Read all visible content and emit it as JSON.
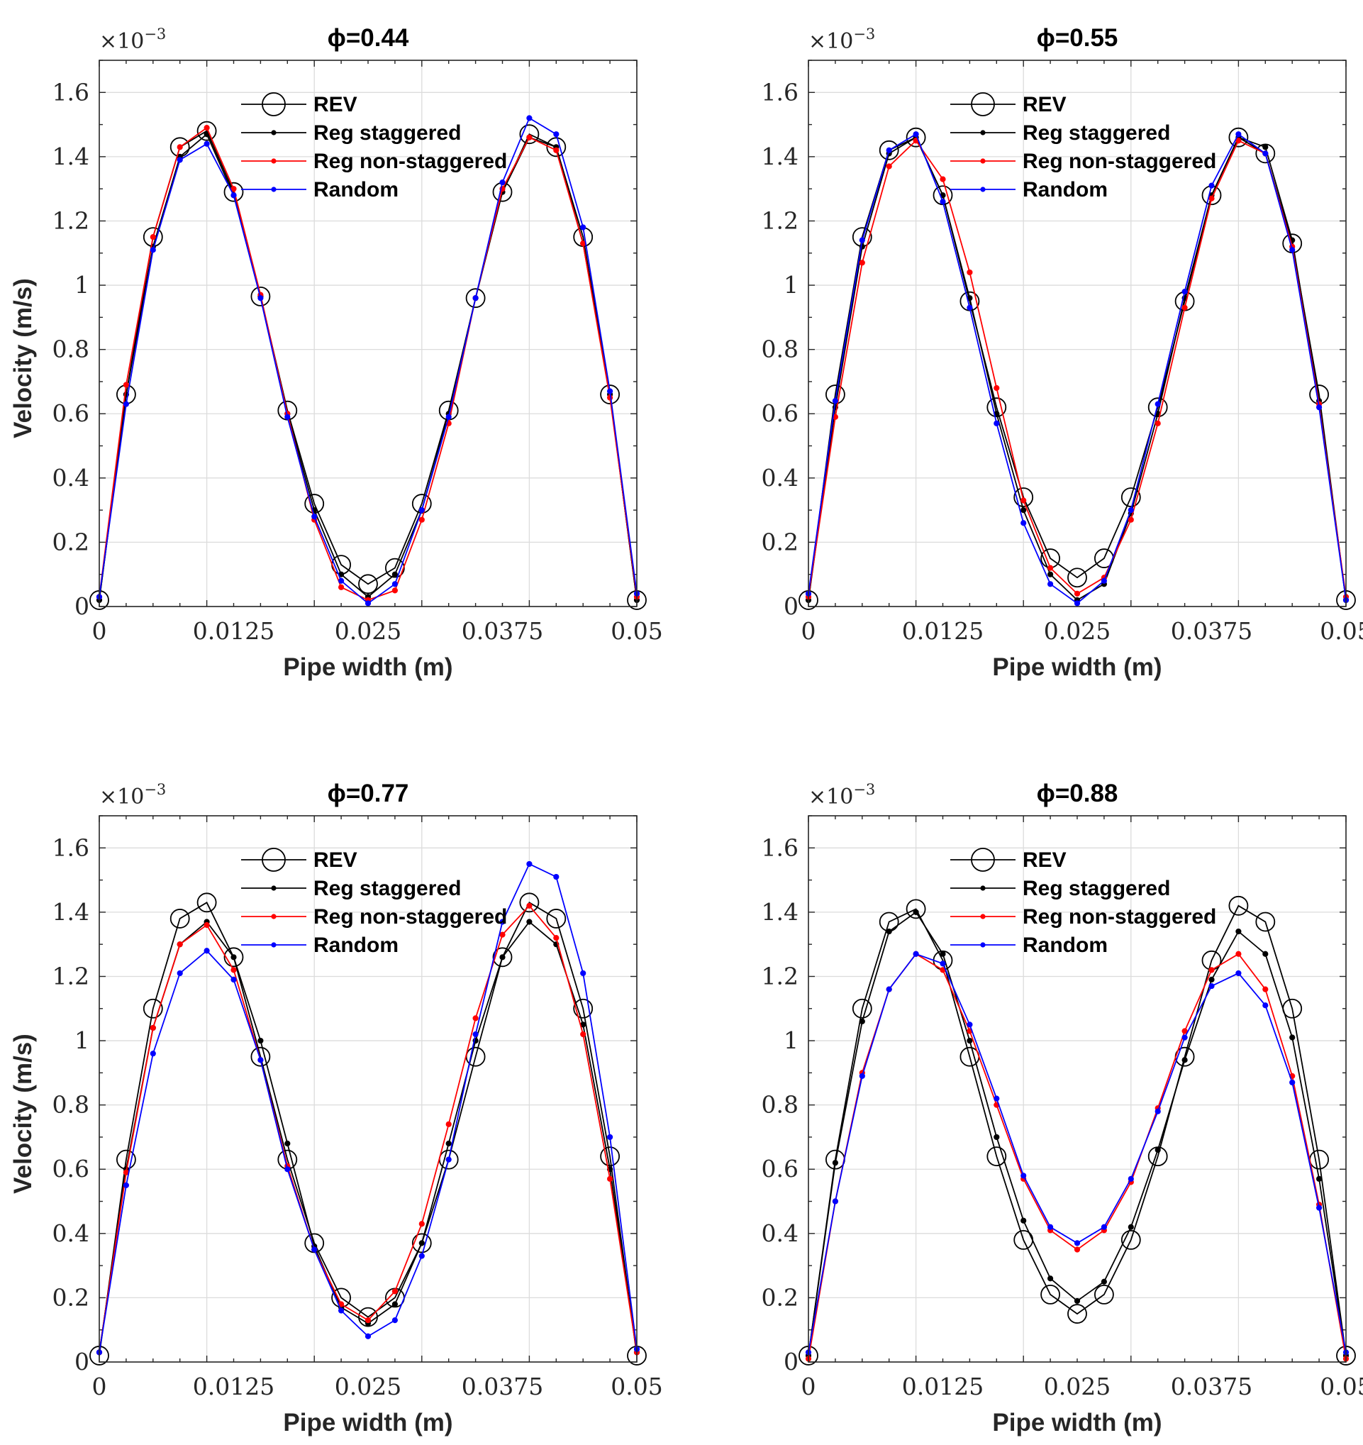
{
  "figure": {
    "colors": {
      "rev": "#000000",
      "staggered": "#000000",
      "nonstaggered": "#ff0000",
      "random": "#0000ff"
    }
  },
  "chart_data": [
    {
      "type": "line",
      "title": "ϕ=0.44",
      "xlabel": "Pipe width (m)",
      "ylabel": "Velocity (m/s)",
      "y_exponent": "×10⁻³",
      "xlim": [
        0,
        0.05
      ],
      "ylim": [
        0,
        1.7
      ],
      "xticks": [
        "0",
        "0.0125",
        "0.025",
        "0.0375",
        "0.05"
      ],
      "yticks": [
        "0",
        "0.2",
        "0.4",
        "0.6",
        "0.8",
        "1",
        "1.2",
        "1.4",
        "1.6"
      ],
      "legend": [
        "REV",
        "Reg staggered",
        "Reg non-staggered",
        "Random"
      ],
      "series": [
        {
          "name": "REV",
          "x": [
            0,
            0.0025,
            0.005,
            0.0075,
            0.01,
            0.0125,
            0.015,
            0.0175,
            0.02,
            0.0225,
            0.025,
            0.0275,
            0.03,
            0.0325,
            0.035,
            0.0375,
            0.04,
            0.0425,
            0.045,
            0.0475,
            0.05
          ],
          "values": [
            0.02,
            0.66,
            1.15,
            1.43,
            1.48,
            1.29,
            0.965,
            0.61,
            0.32,
            0.13,
            0.07,
            0.12,
            0.32,
            0.61,
            0.96,
            1.29,
            1.47,
            1.43,
            1.15,
            0.66,
            0.02
          ]
        },
        {
          "name": "Reg staggered",
          "x": [
            0,
            0.0025,
            0.005,
            0.0075,
            0.01,
            0.0125,
            0.015,
            0.0175,
            0.02,
            0.0225,
            0.025,
            0.0275,
            0.03,
            0.0325,
            0.035,
            0.0375,
            0.04,
            0.0425,
            0.045,
            0.0475,
            0.05
          ],
          "values": [
            0.02,
            0.66,
            1.12,
            1.4,
            1.47,
            1.28,
            0.965,
            0.6,
            0.3,
            0.1,
            0.03,
            0.1,
            0.3,
            0.6,
            0.96,
            1.29,
            1.46,
            1.43,
            1.13,
            0.66,
            0.02
          ]
        },
        {
          "name": "Reg non-staggered",
          "x": [
            0,
            0.0025,
            0.005,
            0.0075,
            0.01,
            0.0125,
            0.015,
            0.0175,
            0.02,
            0.0225,
            0.025,
            0.0275,
            0.03,
            0.0325,
            0.035,
            0.0375,
            0.04,
            0.0425,
            0.045,
            0.0475,
            0.05
          ],
          "values": [
            0.03,
            0.69,
            1.15,
            1.43,
            1.49,
            1.3,
            0.97,
            0.6,
            0.27,
            0.06,
            0.02,
            0.05,
            0.27,
            0.57,
            0.96,
            1.3,
            1.46,
            1.42,
            1.13,
            0.65,
            0.03
          ]
        },
        {
          "name": "Random",
          "x": [
            0,
            0.0025,
            0.005,
            0.0075,
            0.01,
            0.0125,
            0.015,
            0.0175,
            0.02,
            0.0225,
            0.025,
            0.0275,
            0.03,
            0.0325,
            0.035,
            0.0375,
            0.04,
            0.0425,
            0.045,
            0.0475,
            0.05
          ],
          "values": [
            0.03,
            0.63,
            1.11,
            1.39,
            1.44,
            1.28,
            0.96,
            0.59,
            0.28,
            0.08,
            0.01,
            0.07,
            0.3,
            0.59,
            0.96,
            1.32,
            1.52,
            1.47,
            1.18,
            0.67,
            0.04
          ]
        }
      ]
    },
    {
      "type": "line",
      "title": "ϕ=0.55",
      "xlabel": "Pipe width (m)",
      "ylabel": "",
      "y_exponent": "×10⁻³",
      "xlim": [
        0,
        0.05
      ],
      "ylim": [
        0,
        1.7
      ],
      "xticks": [
        "0",
        "0.0125",
        "0.025",
        "0.0375",
        "0.05"
      ],
      "yticks": [
        "0",
        "0.2",
        "0.4",
        "0.6",
        "0.8",
        "1",
        "1.2",
        "1.4",
        "1.6"
      ],
      "legend": [
        "REV",
        "Reg staggered",
        "Reg non-staggered",
        "Random"
      ],
      "series": [
        {
          "name": "REV",
          "x": [
            0,
            0.0025,
            0.005,
            0.0075,
            0.01,
            0.0125,
            0.015,
            0.0175,
            0.02,
            0.0225,
            0.025,
            0.0275,
            0.03,
            0.0325,
            0.035,
            0.0375,
            0.04,
            0.0425,
            0.045,
            0.0475,
            0.05
          ],
          "values": [
            0.02,
            0.66,
            1.15,
            1.42,
            1.46,
            1.28,
            0.95,
            0.62,
            0.34,
            0.15,
            0.09,
            0.15,
            0.34,
            0.62,
            0.95,
            1.28,
            1.46,
            1.41,
            1.13,
            0.66,
            0.02
          ]
        },
        {
          "name": "Reg staggered",
          "x": [
            0,
            0.0025,
            0.005,
            0.0075,
            0.01,
            0.0125,
            0.015,
            0.0175,
            0.02,
            0.0225,
            0.025,
            0.0275,
            0.03,
            0.0325,
            0.035,
            0.0375,
            0.04,
            0.0425,
            0.045,
            0.0475,
            0.05
          ],
          "values": [
            0.02,
            0.62,
            1.12,
            1.41,
            1.46,
            1.28,
            0.96,
            0.6,
            0.3,
            0.1,
            0.02,
            0.07,
            0.29,
            0.6,
            0.96,
            1.28,
            1.46,
            1.43,
            1.14,
            0.64,
            0.02
          ]
        },
        {
          "name": "Reg non-staggered",
          "x": [
            0,
            0.0025,
            0.005,
            0.0075,
            0.01,
            0.0125,
            0.015,
            0.0175,
            0.02,
            0.0225,
            0.025,
            0.0275,
            0.03,
            0.0325,
            0.035,
            0.0375,
            0.04,
            0.0425,
            0.045,
            0.0475,
            0.05
          ],
          "values": [
            0.03,
            0.59,
            1.07,
            1.37,
            1.45,
            1.33,
            1.04,
            0.68,
            0.33,
            0.12,
            0.04,
            0.09,
            0.27,
            0.57,
            0.93,
            1.27,
            1.45,
            1.41,
            1.12,
            0.63,
            0.03
          ]
        },
        {
          "name": "Random",
          "x": [
            0,
            0.0025,
            0.005,
            0.0075,
            0.01,
            0.0125,
            0.015,
            0.0175,
            0.02,
            0.0225,
            0.025,
            0.0275,
            0.03,
            0.0325,
            0.035,
            0.0375,
            0.04,
            0.0425,
            0.045,
            0.0475,
            0.05
          ],
          "values": [
            0.04,
            0.64,
            1.14,
            1.42,
            1.47,
            1.26,
            0.93,
            0.57,
            0.26,
            0.07,
            0.01,
            0.08,
            0.3,
            0.63,
            0.98,
            1.31,
            1.47,
            1.41,
            1.11,
            0.62,
            0.02
          ]
        }
      ]
    },
    {
      "type": "line",
      "title": "ϕ=0.77",
      "xlabel": "Pipe width (m)",
      "ylabel": "Velocity (m/s)",
      "y_exponent": "×10⁻³",
      "xlim": [
        0,
        0.05
      ],
      "ylim": [
        0,
        1.7
      ],
      "xticks": [
        "0",
        "0.0125",
        "0.025",
        "0.0375",
        "0.05"
      ],
      "yticks": [
        "0",
        "0.2",
        "0.4",
        "0.6",
        "0.8",
        "1",
        "1.2",
        "1.4",
        "1.6"
      ],
      "legend": [
        "REV",
        "Reg staggered",
        "Reg non-staggered",
        "Random"
      ],
      "series": [
        {
          "name": "REV",
          "x": [
            0,
            0.0025,
            0.005,
            0.0075,
            0.01,
            0.0125,
            0.015,
            0.0175,
            0.02,
            0.0225,
            0.025,
            0.0275,
            0.03,
            0.0325,
            0.035,
            0.0375,
            0.04,
            0.0425,
            0.045,
            0.0475,
            0.05
          ],
          "values": [
            0.02,
            0.63,
            1.1,
            1.38,
            1.43,
            1.26,
            0.95,
            0.63,
            0.37,
            0.2,
            0.14,
            0.2,
            0.37,
            0.63,
            0.95,
            1.26,
            1.43,
            1.38,
            1.1,
            0.64,
            0.02
          ]
        },
        {
          "name": "Reg staggered",
          "x": [
            0,
            0.0025,
            0.005,
            0.0075,
            0.01,
            0.0125,
            0.015,
            0.0175,
            0.02,
            0.0225,
            0.025,
            0.0275,
            0.03,
            0.0325,
            0.035,
            0.0375,
            0.04,
            0.0425,
            0.045,
            0.0475,
            0.05
          ],
          "values": [
            0.03,
            0.6,
            1.04,
            1.3,
            1.37,
            1.26,
            1.0,
            0.68,
            0.36,
            0.17,
            0.12,
            0.18,
            0.37,
            0.68,
            1.0,
            1.26,
            1.37,
            1.3,
            1.05,
            0.6,
            0.03
          ]
        },
        {
          "name": "Reg non-staggered",
          "x": [
            0,
            0.0025,
            0.005,
            0.0075,
            0.01,
            0.0125,
            0.015,
            0.0175,
            0.02,
            0.0225,
            0.025,
            0.0275,
            0.03,
            0.0325,
            0.035,
            0.0375,
            0.04,
            0.0425,
            0.045,
            0.0475,
            0.05
          ],
          "values": [
            0.03,
            0.59,
            1.04,
            1.3,
            1.36,
            1.22,
            0.94,
            0.61,
            0.35,
            0.18,
            0.13,
            0.22,
            0.43,
            0.74,
            1.07,
            1.33,
            1.42,
            1.32,
            1.02,
            0.57,
            0.03
          ]
        },
        {
          "name": "Random",
          "x": [
            0,
            0.0025,
            0.005,
            0.0075,
            0.01,
            0.0125,
            0.015,
            0.0175,
            0.02,
            0.0225,
            0.025,
            0.0275,
            0.03,
            0.0325,
            0.035,
            0.0375,
            0.04,
            0.0425,
            0.045,
            0.0475,
            0.05
          ],
          "values": [
            0.03,
            0.55,
            0.96,
            1.21,
            1.28,
            1.19,
            0.94,
            0.6,
            0.35,
            0.16,
            0.08,
            0.13,
            0.33,
            0.63,
            1.02,
            1.37,
            1.55,
            1.51,
            1.21,
            0.7,
            0.04
          ]
        }
      ]
    },
    {
      "type": "line",
      "title": "ϕ=0.88",
      "xlabel": "Pipe width (m)",
      "ylabel": "",
      "y_exponent": "×10⁻³",
      "xlim": [
        0,
        0.05
      ],
      "ylim": [
        0,
        1.7
      ],
      "xticks": [
        "0",
        "0.0125",
        "0.025",
        "0.0375",
        "0.05"
      ],
      "yticks": [
        "0",
        "0.2",
        "0.4",
        "0.6",
        "0.8",
        "1",
        "1.2",
        "1.4",
        "1.6"
      ],
      "legend": [
        "REV",
        "Reg staggered",
        "Reg non-staggered",
        "Random"
      ],
      "series": [
        {
          "name": "REV",
          "x": [
            0,
            0.0025,
            0.005,
            0.0075,
            0.01,
            0.0125,
            0.015,
            0.0175,
            0.02,
            0.0225,
            0.025,
            0.0275,
            0.03,
            0.0325,
            0.035,
            0.0375,
            0.04,
            0.0425,
            0.045,
            0.0475,
            0.05
          ],
          "values": [
            0.02,
            0.63,
            1.1,
            1.37,
            1.41,
            1.25,
            0.95,
            0.64,
            0.38,
            0.21,
            0.15,
            0.21,
            0.38,
            0.64,
            0.95,
            1.25,
            1.42,
            1.37,
            1.1,
            0.63,
            0.02
          ]
        },
        {
          "name": "Reg staggered",
          "x": [
            0,
            0.0025,
            0.005,
            0.0075,
            0.01,
            0.0125,
            0.015,
            0.0175,
            0.02,
            0.0225,
            0.025,
            0.0275,
            0.03,
            0.0325,
            0.035,
            0.0375,
            0.04,
            0.0425,
            0.045,
            0.0475,
            0.05
          ],
          "values": [
            0.02,
            0.62,
            1.06,
            1.34,
            1.4,
            1.27,
            1.0,
            0.7,
            0.44,
            0.26,
            0.19,
            0.25,
            0.42,
            0.66,
            0.94,
            1.19,
            1.34,
            1.27,
            1.01,
            0.57,
            0.02
          ]
        },
        {
          "name": "Reg non-staggered",
          "x": [
            0,
            0.0025,
            0.005,
            0.0075,
            0.01,
            0.0125,
            0.015,
            0.0175,
            0.02,
            0.0225,
            0.025,
            0.0275,
            0.03,
            0.0325,
            0.035,
            0.0375,
            0.04,
            0.0425,
            0.045,
            0.0475,
            0.05
          ],
          "values": [
            0.01,
            0.5,
            0.9,
            1.16,
            1.27,
            1.22,
            1.03,
            0.8,
            0.57,
            0.41,
            0.35,
            0.41,
            0.56,
            0.79,
            1.03,
            1.22,
            1.27,
            1.16,
            0.89,
            0.49,
            0.01
          ]
        },
        {
          "name": "Random",
          "x": [
            0,
            0.0025,
            0.005,
            0.0075,
            0.01,
            0.0125,
            0.015,
            0.0175,
            0.02,
            0.0225,
            0.025,
            0.0275,
            0.03,
            0.0325,
            0.035,
            0.0375,
            0.04,
            0.0425,
            0.045,
            0.0475,
            0.05
          ],
          "values": [
            0.03,
            0.5,
            0.89,
            1.16,
            1.27,
            1.24,
            1.05,
            0.82,
            0.58,
            0.42,
            0.37,
            0.42,
            0.57,
            0.78,
            1.01,
            1.17,
            1.21,
            1.11,
            0.87,
            0.48,
            0.03
          ]
        }
      ]
    }
  ]
}
